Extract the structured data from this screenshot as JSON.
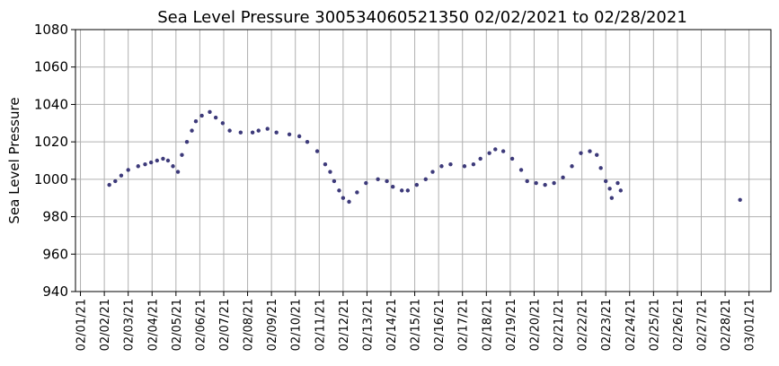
{
  "chart_data": {
    "type": "scatter",
    "title": "Sea Level Pressure 300534060521350  02/02/2021 to 02/28/2021",
    "ylabel": "Sea Level Pressure",
    "color": "#3d3a7a",
    "grid": true,
    "ylim": [
      940,
      1080
    ],
    "yticks": [
      940,
      960,
      980,
      1000,
      1020,
      1040,
      1060,
      1080
    ],
    "xlim": [
      "2021-01-31T19:00",
      "2021-03-01T22:00"
    ],
    "xticks": [
      {
        "value": "2021-02-01",
        "label": "02/01/21"
      },
      {
        "value": "2021-02-02",
        "label": "02/02/21"
      },
      {
        "value": "2021-02-03",
        "label": "02/03/21"
      },
      {
        "value": "2021-02-04",
        "label": "02/04/21"
      },
      {
        "value": "2021-02-05",
        "label": "02/05/21"
      },
      {
        "value": "2021-02-06",
        "label": "02/06/21"
      },
      {
        "value": "2021-02-07",
        "label": "02/07/21"
      },
      {
        "value": "2021-02-08",
        "label": "02/08/21"
      },
      {
        "value": "2021-02-09",
        "label": "02/09/21"
      },
      {
        "value": "2021-02-10",
        "label": "02/10/21"
      },
      {
        "value": "2021-02-11",
        "label": "02/11/21"
      },
      {
        "value": "2021-02-12",
        "label": "02/12/21"
      },
      {
        "value": "2021-02-13",
        "label": "02/13/21"
      },
      {
        "value": "2021-02-14",
        "label": "02/14/21"
      },
      {
        "value": "2021-02-15",
        "label": "02/15/21"
      },
      {
        "value": "2021-02-16",
        "label": "02/16/21"
      },
      {
        "value": "2021-02-17",
        "label": "02/17/21"
      },
      {
        "value": "2021-02-18",
        "label": "02/18/21"
      },
      {
        "value": "2021-02-19",
        "label": "02/19/21"
      },
      {
        "value": "2021-02-20",
        "label": "02/20/21"
      },
      {
        "value": "2021-02-21",
        "label": "02/21/21"
      },
      {
        "value": "2021-02-22",
        "label": "02/22/21"
      },
      {
        "value": "2021-02-23",
        "label": "02/23/21"
      },
      {
        "value": "2021-02-24",
        "label": "02/24/21"
      },
      {
        "value": "2021-02-25",
        "label": "02/25/21"
      },
      {
        "value": "2021-02-26",
        "label": "02/26/21"
      },
      {
        "value": "2021-02-27",
        "label": "02/27/21"
      },
      {
        "value": "2021-02-28",
        "label": "02/28/21"
      },
      {
        "value": "2021-03-01",
        "label": "03/01/21"
      }
    ],
    "x": [
      "2021-02-02T05:00",
      "2021-02-02T11:00",
      "2021-02-02T17:00",
      "2021-02-03T00:00",
      "2021-02-03T10:00",
      "2021-02-03T17:00",
      "2021-02-03T23:00",
      "2021-02-04T05:00",
      "2021-02-04T11:00",
      "2021-02-04T16:00",
      "2021-02-04T21:00",
      "2021-02-05T02:00",
      "2021-02-05T06:00",
      "2021-02-05T11:00",
      "2021-02-05T16:00",
      "2021-02-05T20:00",
      "2021-02-06T02:00",
      "2021-02-06T10:00",
      "2021-02-06T16:00",
      "2021-02-06T23:00",
      "2021-02-07T06:00",
      "2021-02-07T17:00",
      "2021-02-08T05:00",
      "2021-02-08T11:00",
      "2021-02-08T20:00",
      "2021-02-09T05:00",
      "2021-02-09T18:00",
      "2021-02-10T04:00",
      "2021-02-10T12:00",
      "2021-02-10T22:00",
      "2021-02-11T06:00",
      "2021-02-11T11:00",
      "2021-02-11T15:00",
      "2021-02-11T20:00",
      "2021-02-12T00:00",
      "2021-02-12T06:00",
      "2021-02-12T14:00",
      "2021-02-12T23:00",
      "2021-02-13T11:00",
      "2021-02-13T20:00",
      "2021-02-14T02:00",
      "2021-02-14T11:00",
      "2021-02-14T17:00",
      "2021-02-15T02:00",
      "2021-02-15T11:00",
      "2021-02-15T18:00",
      "2021-02-16T03:00",
      "2021-02-16T12:00",
      "2021-02-17T02:00",
      "2021-02-17T11:00",
      "2021-02-17T18:00",
      "2021-02-18T03:00",
      "2021-02-18T09:00",
      "2021-02-18T17:00",
      "2021-02-19T02:00",
      "2021-02-19T11:00",
      "2021-02-19T17:00",
      "2021-02-20T02:00",
      "2021-02-20T11:00",
      "2021-02-20T20:00",
      "2021-02-21T05:00",
      "2021-02-21T14:00",
      "2021-02-21T23:00",
      "2021-02-22T08:00",
      "2021-02-22T15:00",
      "2021-02-22T19:00",
      "2021-02-23T00:00",
      "2021-02-23T04:00",
      "2021-02-23T06:00",
      "2021-02-23T12:00",
      "2021-02-23T15:00",
      "2021-02-28T15:00"
    ],
    "values": [
      997,
      999,
      1002,
      1005,
      1007,
      1008,
      1009,
      1010,
      1011,
      1010,
      1007,
      1004,
      1013,
      1020,
      1026,
      1031,
      1034,
      1036,
      1033,
      1030,
      1026,
      1025,
      1025,
      1026,
      1027,
      1025,
      1024,
      1023,
      1020,
      1015,
      1008,
      1004,
      999,
      994,
      990,
      988,
      993,
      998,
      1000,
      999,
      996,
      994,
      994,
      997,
      1000,
      1004,
      1007,
      1008,
      1007,
      1008,
      1011,
      1014,
      1016,
      1015,
      1011,
      1005,
      999,
      998,
      997,
      998,
      1001,
      1007,
      1014,
      1015,
      1013,
      1006,
      999,
      995,
      990,
      998,
      994,
      989
    ]
  }
}
